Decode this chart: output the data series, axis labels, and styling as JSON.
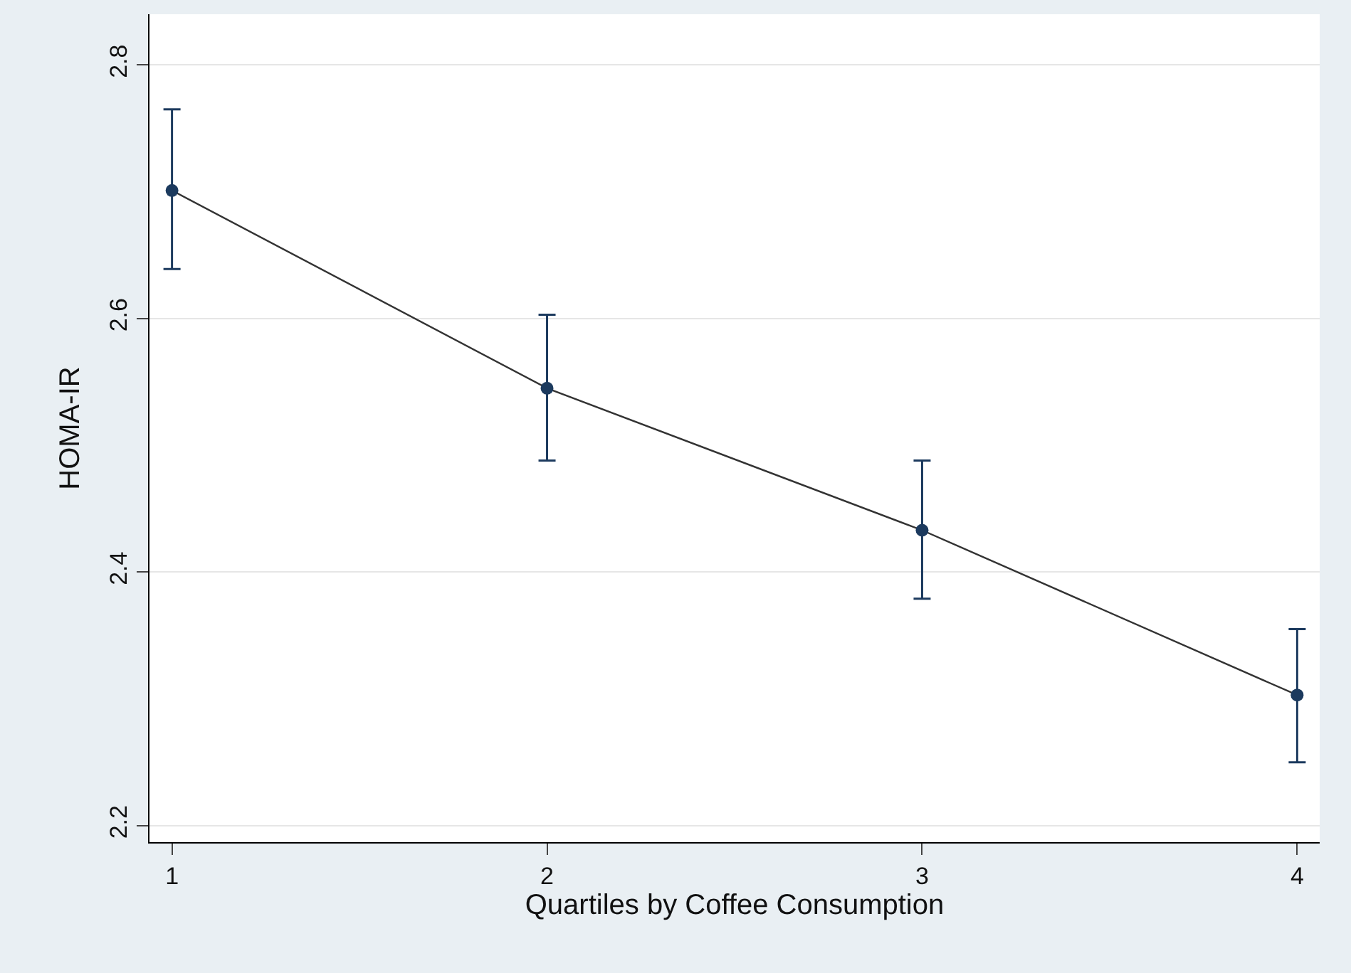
{
  "chart_data": {
    "type": "line",
    "xlabel": "Quartiles by Coffee Consumption",
    "ylabel": "HOMA-IR",
    "x": [
      1,
      2,
      3,
      4
    ],
    "series": [
      {
        "color": "#1c3a5e",
        "values": [
          2.701,
          2.545,
          2.433,
          2.303
        ],
        "errors": [
          [
            2.639,
            2.765
          ],
          [
            2.488,
            2.603
          ],
          [
            2.379,
            2.488
          ],
          [
            2.25,
            2.355
          ]
        ]
      }
    ],
    "xlim": [
      0.94,
      4.06
    ],
    "xticks": [
      1,
      2,
      3,
      4
    ],
    "ylim": [
      2.187,
      2.84
    ],
    "yticks": [
      2.2,
      2.4,
      2.6,
      2.8
    ],
    "grid": "y",
    "marker": "circle",
    "line_style": "solid"
  }
}
